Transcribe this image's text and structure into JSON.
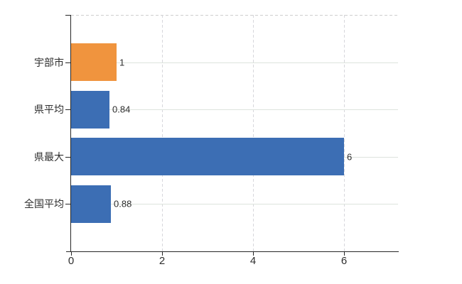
{
  "colors": {
    "bar_default": "#3c6eb4",
    "bar_highlight": "#f0943e",
    "axis": "#262626",
    "label": "#2e2e2e",
    "gridline_horizontal": "#dde3dd",
    "gridline_vertical": "#d7d7dc",
    "top_border": "#cdcdcd"
  },
  "chart_data": {
    "type": "bar",
    "orientation": "horizontal",
    "categories": [
      "宇部市",
      "県平均",
      "県最大",
      "全国平均"
    ],
    "values": [
      1,
      0.84,
      6,
      0.88
    ],
    "value_labels": [
      "1",
      "0.84",
      "6",
      "0.88"
    ],
    "bar_colors": [
      "#f0943e",
      "#3c6eb4",
      "#3c6eb4",
      "#3c6eb4"
    ],
    "highlight_category": "宇部市",
    "x_ticks": [
      0,
      2,
      4,
      6
    ],
    "x_tick_labels": [
      "0",
      "2",
      "4",
      "6"
    ],
    "xlim": [
      0,
      7.19
    ],
    "grid": "on",
    "legend": "none",
    "title": "",
    "xlabel": "",
    "ylabel": ""
  }
}
